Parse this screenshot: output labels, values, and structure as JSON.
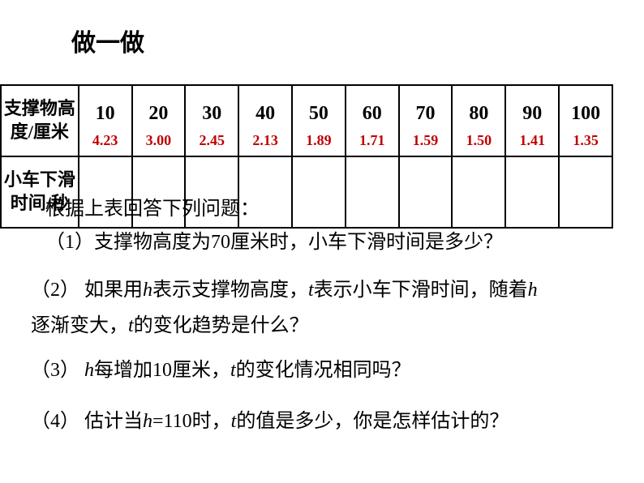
{
  "title": "做一做",
  "table": {
    "row1_label": "支撑物高度/厘米",
    "row2_label": "小车下滑时间/秒",
    "columns": [
      "10",
      "20",
      "30",
      "40",
      "50",
      "60",
      "70",
      "80",
      "90",
      "100"
    ],
    "values": [
      "4.23",
      "3.00",
      "2.45",
      "2.13",
      "1.89",
      "1.71",
      "1.59",
      "1.50",
      "1.41",
      "1.35"
    ],
    "header_color": "#000000",
    "value_color": "#c00000",
    "border_color": "#000000"
  },
  "questions": {
    "intro": "根据上表回答下列问题：",
    "q1": "（1）支撑物高度为70厘米时，小车下滑时间是多少？",
    "q2_a": "（2） 如果用",
    "q2_b": "表示支撑物高度，",
    "q2_c": "表示小车下滑时间，随着",
    "q2_d": "逐渐变大，",
    "q2_e": "的变化趋势是什么？",
    "q3_a": "（3）  ",
    "q3_b": "每增加10厘米，",
    "q3_c": "的变化情况相同吗？",
    "q4_a": "（4） 估计当",
    "q4_b": "=110时，",
    "q4_c": "的值是多少，你是怎样估计的？",
    "var_h": "h",
    "var_t": "t"
  }
}
